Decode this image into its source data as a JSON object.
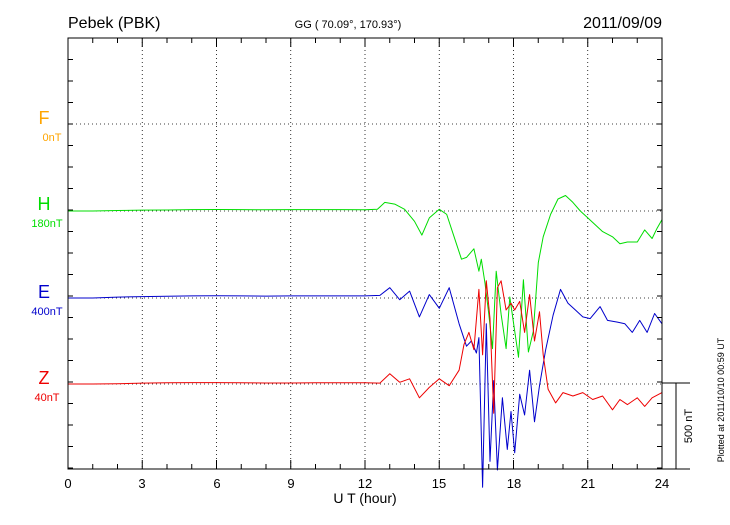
{
  "header": {
    "station": "Pebek (PBK)",
    "coords": "GG ( 70.09°, 170.93°)",
    "date": "2011/09/09"
  },
  "footer": {
    "plotted": "Plotted at 2011/10/10 00:59 UT",
    "scale_bar": "500 nT"
  },
  "chart_data": {
    "type": "line",
    "title": "Pebek (PBK)",
    "xlabel": "U T (hour)",
    "xlim": [
      0,
      24
    ],
    "xticks": [
      "0",
      "3",
      "6",
      "9",
      "12",
      "15",
      "18",
      "21",
      "24"
    ],
    "grid": true,
    "units": "nT",
    "scale_bar_nT": 500,
    "series": [
      {
        "name": "F",
        "baseline": "0nT",
        "color": "#ffa500",
        "x": [],
        "y": []
      },
      {
        "name": "H",
        "baseline": "180nT",
        "color": "#00dd00",
        "x": [
          0,
          1,
          2,
          3,
          4,
          5,
          6,
          7,
          8,
          9,
          10,
          11,
          12,
          12.5,
          12.8,
          13.2,
          13.6,
          14,
          14.3,
          14.6,
          15,
          15.3,
          15.6,
          15.9,
          16.1,
          16.4,
          16.6,
          16.7,
          16.85,
          17,
          17.15,
          17.3,
          17.5,
          17.7,
          17.85,
          18,
          18.2,
          18.4,
          18.6,
          18.8,
          19,
          19.2,
          19.5,
          19.8,
          20.1,
          20.4,
          20.7,
          21,
          21.3,
          21.6,
          22,
          22.3,
          22.6,
          23,
          23.3,
          23.6,
          23.8,
          24
        ],
        "y": [
          0,
          0,
          3,
          5,
          6,
          8,
          9,
          8,
          7,
          8,
          8,
          8,
          7,
          10,
          50,
          40,
          10,
          -60,
          -140,
          -40,
          10,
          -20,
          -150,
          -280,
          -270,
          -220,
          -350,
          -280,
          -420,
          -600,
          -800,
          -350,
          -600,
          -800,
          -500,
          -650,
          -850,
          -400,
          -820,
          -700,
          -300,
          -150,
          -20,
          70,
          90,
          50,
          0,
          -40,
          -80,
          -120,
          -150,
          -190,
          -180,
          -180,
          -110,
          -160,
          -100,
          -50
        ]
      },
      {
        "name": "E",
        "baseline": "400nT",
        "color": "#0000cc",
        "x": [
          0,
          1,
          2,
          3,
          4,
          5,
          6,
          7,
          8,
          9,
          10,
          11,
          12,
          12.6,
          13,
          13.4,
          13.8,
          14.2,
          14.6,
          15,
          15.4,
          15.8,
          16.1,
          16.3,
          16.5,
          16.6,
          16.75,
          16.9,
          17.05,
          17.2,
          17.35,
          17.55,
          17.75,
          17.9,
          18.05,
          18.25,
          18.45,
          18.65,
          18.85,
          19.05,
          19.3,
          19.6,
          19.9,
          20.2,
          20.5,
          20.8,
          21.1,
          21.5,
          21.8,
          22.2,
          22.5,
          22.8,
          23.1,
          23.4,
          23.7,
          24
        ],
        "y": [
          0,
          0,
          5,
          8,
          10,
          12,
          13,
          12,
          11,
          12,
          12,
          12,
          12,
          15,
          60,
          -10,
          40,
          -110,
          20,
          -60,
          60,
          -150,
          -280,
          -250,
          -320,
          -230,
          -1100,
          -150,
          -950,
          -480,
          -1000,
          -580,
          -880,
          -660,
          -900,
          -560,
          -680,
          -420,
          -720,
          -510,
          -300,
          -100,
          50,
          -30,
          -70,
          -110,
          -120,
          -50,
          -130,
          -140,
          -150,
          -200,
          -130,
          -200,
          -90,
          -150
        ]
      },
      {
        "name": "Z",
        "baseline": "40nT",
        "color": "#ee0000",
        "x": [
          0,
          1,
          2,
          3,
          4,
          5,
          6,
          7,
          8,
          9,
          10,
          11,
          12,
          12.6,
          13,
          13.4,
          13.8,
          14.2,
          14.6,
          15,
          15.4,
          15.8,
          16,
          16.2,
          16.4,
          16.6,
          16.75,
          16.9,
          17.05,
          17.2,
          17.35,
          17.5,
          17.7,
          17.9,
          18.05,
          18.25,
          18.45,
          18.65,
          18.85,
          19.05,
          19.2,
          19.4,
          19.7,
          20,
          20.4,
          20.8,
          21.2,
          21.6,
          22,
          22.3,
          22.6,
          23,
          23.3,
          23.6,
          24
        ],
        "y": [
          0,
          0,
          2,
          5,
          7,
          8,
          8,
          7,
          6,
          6,
          7,
          7,
          7,
          5,
          60,
          10,
          30,
          -80,
          -20,
          30,
          -10,
          80,
          230,
          300,
          200,
          550,
          170,
          600,
          380,
          -170,
          560,
          600,
          430,
          470,
          430,
          480,
          300,
          520,
          250,
          420,
          170,
          -30,
          -110,
          -50,
          -70,
          -50,
          -90,
          -70,
          -150,
          -90,
          -120,
          -80,
          -130,
          -80,
          -50
        ]
      }
    ]
  }
}
